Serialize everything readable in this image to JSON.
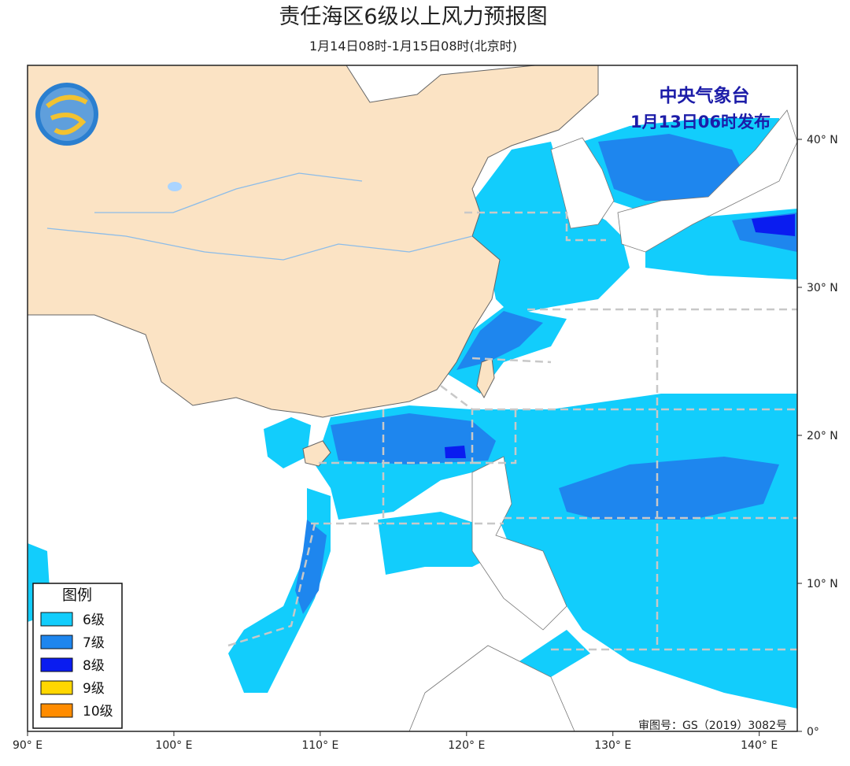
{
  "header": {
    "title": "责任海区6级以上风力预报图",
    "subtitle": "1月14日08时-1月15日08时(北京时)",
    "issuer": "中央气象台",
    "issue_time": "1月13日06时发布"
  },
  "map": {
    "xlim": [
      90,
      142.6
    ],
    "ylim": [
      0,
      45
    ],
    "xticks": [
      {
        "value": 90,
        "label": "90° E"
      },
      {
        "value": 100,
        "label": "100° E"
      },
      {
        "value": 110,
        "label": "110° E"
      },
      {
        "value": 120,
        "label": "120° E"
      },
      {
        "value": 130,
        "label": "130° E"
      },
      {
        "value": 140,
        "label": "140° E"
      }
    ],
    "yticks": [
      {
        "value": 0,
        "label": "0°"
      },
      {
        "value": 10,
        "label": "10° N"
      },
      {
        "value": 20,
        "label": "20° N"
      },
      {
        "value": 30,
        "label": "30° N"
      },
      {
        "value": 40,
        "label": "40° N"
      }
    ]
  },
  "legend": {
    "title": "图例",
    "items": [
      {
        "label": "6级",
        "color": "#12cdfc"
      },
      {
        "label": "7级",
        "color": "#1e86ee"
      },
      {
        "label": "8级",
        "color": "#0a1cf0"
      },
      {
        "label": "9级",
        "color": "#ffd700"
      },
      {
        "label": "10级",
        "color": "#ff8c00"
      }
    ]
  },
  "footer": {
    "review_number": "审图号：GS（2019）3082号"
  }
}
